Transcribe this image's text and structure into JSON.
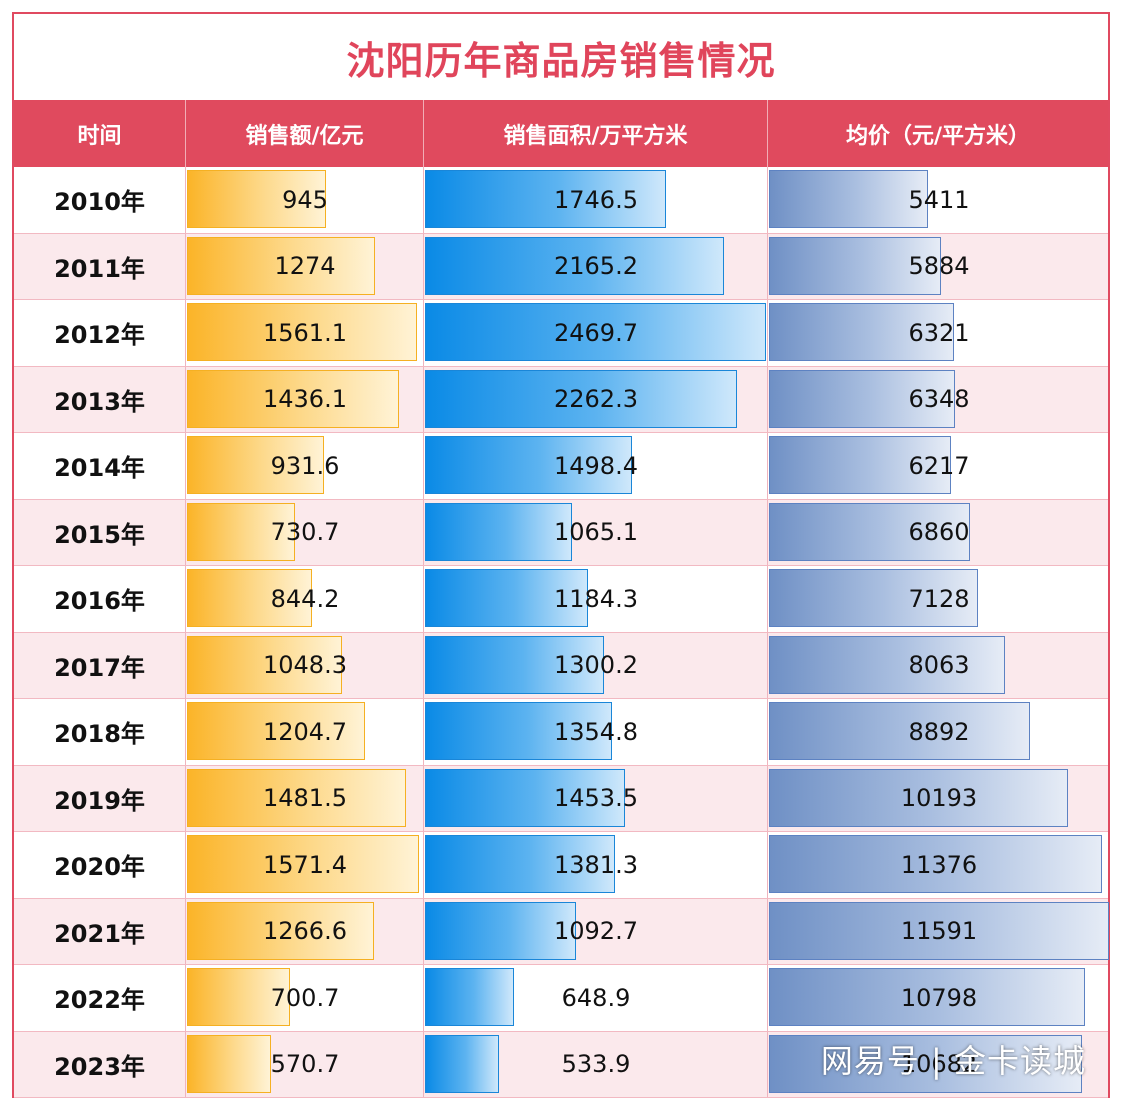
{
  "title": "沈阳历年商品房销售情况",
  "headers": {
    "time": "时间",
    "sales": "销售额/亿元",
    "area": "销售面积/万平方米",
    "price": "均价（元/平方米）"
  },
  "colors": {
    "frame": "#e04a60",
    "header_bg": "#e04a5e",
    "title": "#e0455b",
    "sales_bar": "#fbb428",
    "area_bar": "#0a8ae6",
    "price_bar": "#6f90c5"
  },
  "watermark": "网易号 | 金卡读城",
  "chart_data": {
    "type": "table",
    "categories": [
      "2010年",
      "2011年",
      "2012年",
      "2013年",
      "2014年",
      "2015年",
      "2016年",
      "2017年",
      "2018年",
      "2019年",
      "2020年",
      "2021年",
      "2022年",
      "2023年"
    ],
    "series": [
      {
        "name": "销售额/亿元",
        "key": "sales",
        "values": [
          945,
          1274,
          1561.1,
          1436.1,
          931.6,
          730.7,
          844.2,
          1048.3,
          1204.7,
          1481.5,
          1571.4,
          1266.6,
          700.7,
          570.7
        ],
        "labels": [
          "945",
          "1274",
          "1561.1",
          "1436.1",
          "931.6",
          "730.7",
          "844.2",
          "1048.3",
          "1204.7",
          "1481.5",
          "1571.4",
          "1266.6",
          "700.7",
          "570.7"
        ]
      },
      {
        "name": "销售面积/万平方米",
        "key": "area",
        "values": [
          1746.5,
          2165.2,
          2469.7,
          2262.3,
          1498.4,
          1065.1,
          1184.3,
          1300.2,
          1354.8,
          1453.5,
          1381.3,
          1092.7,
          648.9,
          533.9
        ],
        "labels": [
          "1746.5",
          "2165.2",
          "2469.7",
          "2262.3",
          "1498.4",
          "1065.1",
          "1184.3",
          "1300.2",
          "1354.8",
          "1453.5",
          "1381.3",
          "1092.7",
          "648.9",
          "533.9"
        ]
      },
      {
        "name": "均价（元/平方米）",
        "key": "price",
        "values": [
          5411,
          5884,
          6321,
          6348,
          6217,
          6860,
          7128,
          8063,
          8892,
          10193,
          11376,
          11591,
          10798,
          10682
        ],
        "labels": [
          "5411",
          "5884",
          "6321",
          "6348",
          "6217",
          "6860",
          "7128",
          "8063",
          "8892",
          "10193",
          "11376",
          "11591",
          "10798",
          "10682"
        ]
      }
    ]
  }
}
